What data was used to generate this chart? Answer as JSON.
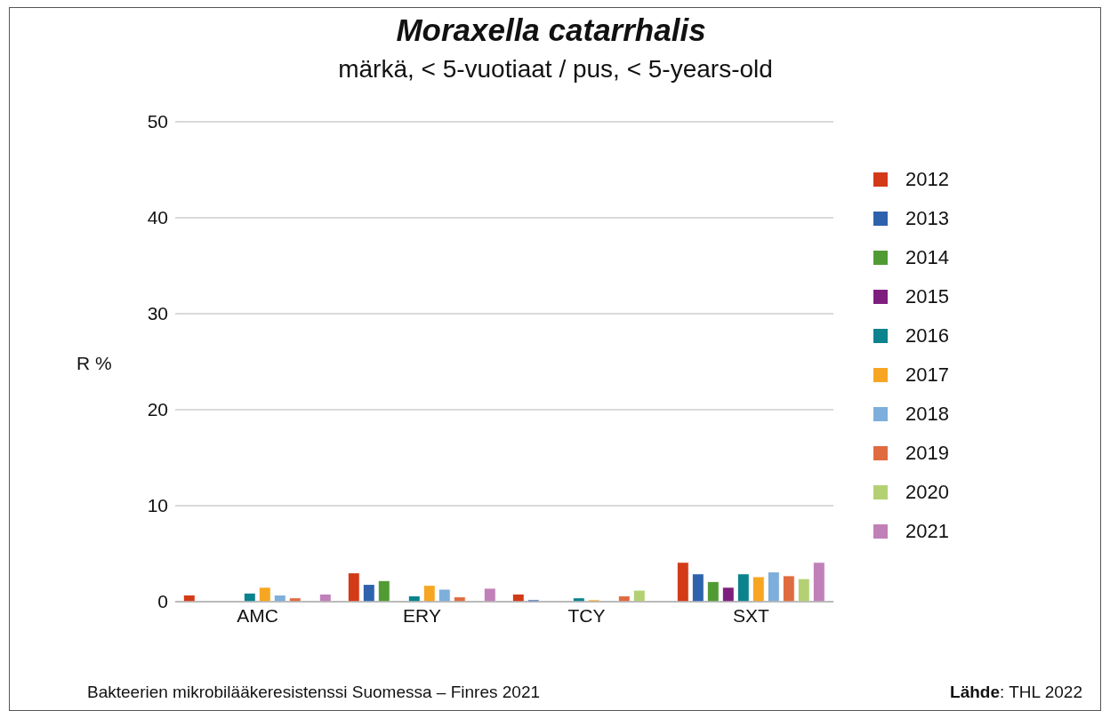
{
  "chart_data": {
    "type": "bar",
    "title": "Moraxella catarrhalis",
    "subtitle": "märkä, < 5-vuotiaat / pus, < 5-years-old",
    "ylabel": "R %",
    "categories": [
      "AMC",
      "ERY",
      "TCY",
      "SXT"
    ],
    "series": [
      {
        "name": "2012",
        "color": "#d33a17",
        "values": [
          0.7,
          3.0,
          0.8,
          4.1
        ]
      },
      {
        "name": "2013",
        "color": "#2e62ad",
        "values": [
          null,
          1.8,
          0.2,
          2.9
        ]
      },
      {
        "name": "2014",
        "color": "#519b34",
        "values": [
          null,
          2.2,
          null,
          2.1
        ]
      },
      {
        "name": "2015",
        "color": "#7e1f7e",
        "values": [
          null,
          null,
          null,
          1.5
        ]
      },
      {
        "name": "2016",
        "color": "#0a838c",
        "values": [
          0.9,
          0.6,
          0.4,
          2.9
        ]
      },
      {
        "name": "2017",
        "color": "#f6a623",
        "values": [
          1.5,
          1.7,
          0.2,
          2.6
        ]
      },
      {
        "name": "2018",
        "color": "#7eaedb",
        "values": [
          0.7,
          1.3,
          null,
          3.1
        ]
      },
      {
        "name": "2019",
        "color": "#df6b40",
        "values": [
          0.4,
          0.5,
          0.6,
          2.7
        ]
      },
      {
        "name": "2020",
        "color": "#b3d173",
        "values": [
          null,
          null,
          1.2,
          2.4
        ]
      },
      {
        "name": "2021",
        "color": "#c080b8",
        "values": [
          0.8,
          1.4,
          null,
          4.1
        ]
      }
    ],
    "ylim": [
      0,
      50
    ],
    "yticks": [
      0,
      10,
      20,
      30,
      40,
      50
    ],
    "grid": "y",
    "legend": "right",
    "annotations": [
      "Bakteerien mikrobilääkeresistenssi Suomessa – Finres 2021",
      "Lähde: THL 2022"
    ]
  }
}
